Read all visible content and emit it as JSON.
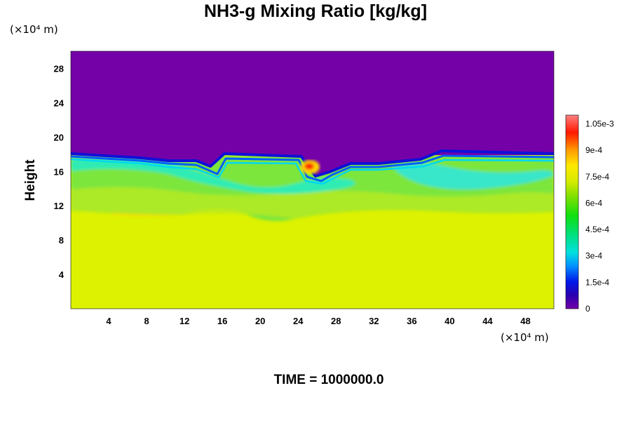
{
  "chart_data": {
    "type": "heatmap",
    "title": "NH3-g Mixing Ratio [kg/kg]",
    "xlabel": "",
    "ylabel": "Height",
    "x_unit": "(×10⁴ m)",
    "y_unit": "(×10⁴ m)",
    "xlim": [
      0,
      51
    ],
    "ylim": [
      0,
      30
    ],
    "x_ticks": [
      4,
      8,
      12,
      16,
      20,
      24,
      28,
      32,
      36,
      40,
      44,
      48
    ],
    "y_ticks": [
      4,
      8,
      12,
      16,
      20,
      24,
      28
    ],
    "colorbar": {
      "min": 0,
      "max": 0.0011,
      "labels": [
        {
          "value": 0,
          "text": "0"
        },
        {
          "value": 0.00015,
          "text": "1.5e-4"
        },
        {
          "value": 0.0003,
          "text": "3e-4"
        },
        {
          "value": 0.00045,
          "text": "4.5e-4"
        },
        {
          "value": 0.0006,
          "text": "6e-4"
        },
        {
          "value": 0.00075,
          "text": "7.5e-4"
        },
        {
          "value": 0.0009,
          "text": "9e-4"
        },
        {
          "value": 0.00105,
          "text": "1.05e-3"
        }
      ]
    },
    "regions": [
      {
        "name": "upper layer",
        "height_range": [
          18,
          30
        ],
        "value": 0
      },
      {
        "name": "lower layer",
        "height_range": [
          0,
          11
        ],
        "value": 0.00078
      },
      {
        "name": "mixed layer",
        "height_range": [
          11,
          18
        ],
        "value_range": [
          0.00015,
          0.0006
        ]
      },
      {
        "name": "local maximum",
        "x": 25.3,
        "y": 16.3,
        "value": 0.00105
      }
    ],
    "footer": "TIME = 1000000.0"
  }
}
